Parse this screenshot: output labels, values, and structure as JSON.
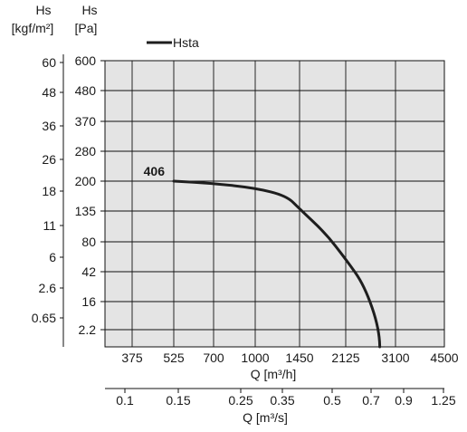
{
  "chart_data": {
    "type": "line",
    "title": "",
    "legend": {
      "entries": [
        "Hsta"
      ],
      "placement": "top-left"
    },
    "left_axes": [
      {
        "header": [
          "Hs",
          "[kgf/m²]"
        ],
        "ticks": [
          "60",
          "48",
          "36",
          "26",
          "18",
          "11",
          "6",
          "2.6",
          "0.65"
        ]
      },
      {
        "header": [
          "Hs",
          "[Pa]"
        ],
        "ticks": [
          "600",
          "480",
          "370",
          "280",
          "200",
          "135",
          "80",
          "42",
          "16",
          "2.2"
        ]
      }
    ],
    "x_axis_flow_h": {
      "label": "Q [m³/h]",
      "ticks": [
        "375",
        "525",
        "700",
        "1000",
        "1450",
        "2125",
        "3100",
        "4500"
      ]
    },
    "x_axis_flow_s": {
      "label": "Q [m³/s]",
      "ticks": [
        "0.1",
        "0.15",
        "0.25",
        "0.35",
        "0.5",
        "0.7",
        "0.9",
        "1.25"
      ]
    },
    "grid": true,
    "series": [
      {
        "name": "Hsta",
        "label": "406",
        "color": "#1e1e1e",
        "points": [
          {
            "x": 525,
            "y": 200
          },
          {
            "x": 700,
            "y": 195
          },
          {
            "x": 1000,
            "y": 185
          },
          {
            "x": 1300,
            "y": 168
          },
          {
            "x": 1450,
            "y": 140
          },
          {
            "x": 1800,
            "y": 95
          },
          {
            "x": 2125,
            "y": 58
          },
          {
            "x": 2450,
            "y": 30
          },
          {
            "x": 2750,
            "y": 2.2
          }
        ]
      }
    ]
  }
}
